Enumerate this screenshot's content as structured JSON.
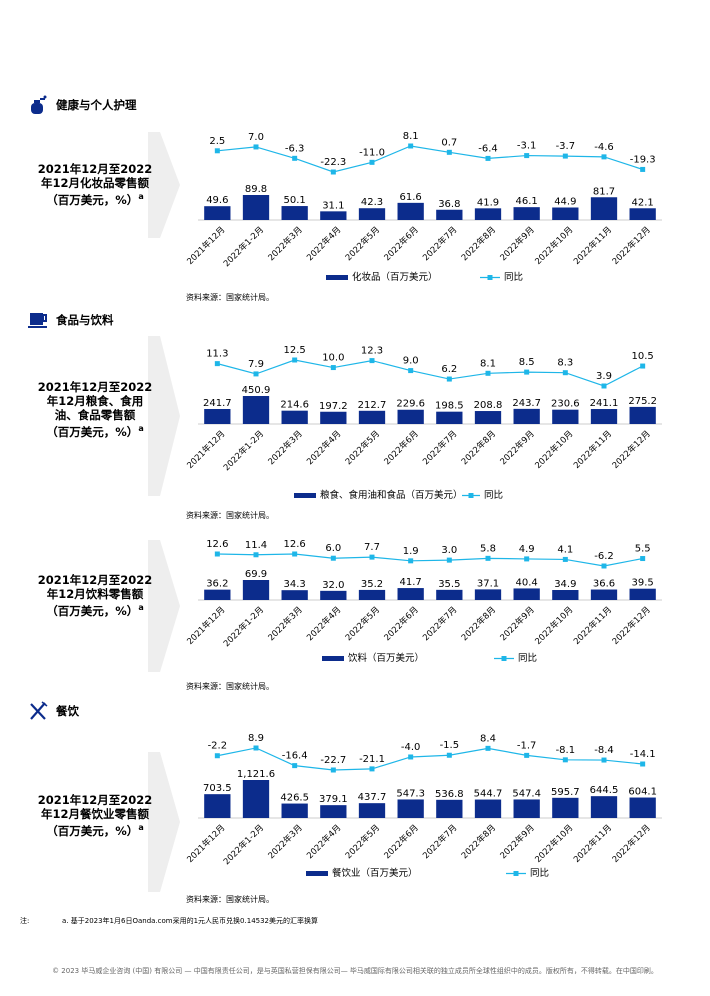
{
  "sections": {
    "health": "健康与个人护理",
    "food": "食品与饮料",
    "dining": "餐饮"
  },
  "source_text": "资料来源：国家统计局。",
  "note": {
    "label": "注:",
    "text": "a. 基于2023年1月6日Oanda.com采用的1元人民币兑换0.14532美元的汇率换算"
  },
  "footer": "© 2023 毕马威企业咨询 (中国) 有限公司 — 中国有限责任公司，是与英国私营担保有限公司— 毕马威国际有限公司相关联的独立成员所全球性组织中的成员。版权所有，不得转载。在中国印刷。",
  "colors": {
    "bar": "#0c2c8c",
    "line": "#1eb6e8",
    "chevron": "#eeeeee"
  },
  "chart_data": [
    {
      "type": "bar",
      "title_lines": [
        "2021年12月至2022",
        "年12月化妆品零售额",
        "（百万美元，%）"
      ],
      "title_sup": "a",
      "categories": [
        "2021年12月",
        "2022年1-2月",
        "2022年3月",
        "2022年4月",
        "2022年5月",
        "2022年6月",
        "2022年7月",
        "2022年8月",
        "2022年9月",
        "2022年10月",
        "2022年11月",
        "2022年12月"
      ],
      "values": [
        49.6,
        89.8,
        50.1,
        31.1,
        42.3,
        61.6,
        36.8,
        41.9,
        46.1,
        44.9,
        81.7,
        42.1
      ],
      "value_labels": [
        "49.6",
        "89.8",
        "50.1",
        "31.1",
        "42.3",
        "61.6",
        "36.8",
        "41.9",
        "46.1",
        "44.9",
        "81.7",
        "42.1"
      ],
      "yoy": [
        2.5,
        7.0,
        -6.3,
        -22.3,
        -11.0,
        8.1,
        0.7,
        -6.4,
        -3.1,
        -3.7,
        -4.6,
        -19.3
      ],
      "yoy_labels": [
        "2.5",
        "7.0",
        "-6.3",
        "-22.3",
        "-11.0",
        "8.1",
        "0.7",
        "-6.4",
        "-3.1",
        "-3.7",
        "-4.6",
        "-19.3"
      ],
      "legend": [
        "化妆品（百万美元）",
        "同比"
      ],
      "legend_position": "bottom"
    },
    {
      "type": "bar",
      "title_lines": [
        "2021年12月至2022",
        "年12月粮食、食用",
        "油、食品零售额",
        "（百万美元，%）"
      ],
      "title_sup": "a",
      "categories": [
        "2021年12月",
        "2022年1-2月",
        "2022年3月",
        "2022年4月",
        "2022年5月",
        "2022年6月",
        "2022年7月",
        "2022年8月",
        "2022年9月",
        "2022年10月",
        "2022年11月",
        "2022年12月"
      ],
      "values": [
        241.7,
        450.9,
        214.6,
        197.2,
        212.7,
        229.6,
        198.5,
        208.8,
        243.7,
        230.6,
        241.1,
        275.2
      ],
      "value_labels": [
        "241.7",
        "450.9",
        "214.6",
        "197.2",
        "212.7",
        "229.6",
        "198.5",
        "208.8",
        "243.7",
        "230.6",
        "241.1",
        "275.2"
      ],
      "yoy": [
        11.3,
        7.9,
        12.5,
        10.0,
        12.3,
        9.0,
        6.2,
        8.1,
        8.5,
        8.3,
        3.9,
        10.5
      ],
      "yoy_labels": [
        "11.3",
        "7.9",
        "12.5",
        "10.0",
        "12.3",
        "9.0",
        "6.2",
        "8.1",
        "8.5",
        "8.3",
        "3.9",
        "10.5"
      ],
      "legend": [
        "粮食、食用油和食品（百万美元）",
        "同比"
      ],
      "legend_position": "bottom"
    },
    {
      "type": "bar",
      "title_lines": [
        "2021年12月至2022",
        "年12月饮料零售额",
        "（百万美元，%）"
      ],
      "title_sup": "a",
      "categories": [
        "2021年12月",
        "2022年1-2月",
        "2022年3月",
        "2022年4月",
        "2022年5月",
        "2022年6月",
        "2022年7月",
        "2022年8月",
        "2022年9月",
        "2022年10月",
        "2022年11月",
        "2022年12月"
      ],
      "values": [
        36.2,
        69.9,
        34.3,
        32.0,
        35.2,
        41.7,
        35.5,
        37.1,
        40.4,
        34.9,
        36.6,
        39.5
      ],
      "value_labels": [
        "36.2",
        "69.9",
        "34.3",
        "32.0",
        "35.2",
        "41.7",
        "35.5",
        "37.1",
        "40.4",
        "34.9",
        "36.6",
        "39.5"
      ],
      "yoy": [
        12.6,
        11.4,
        12.6,
        6.0,
        7.7,
        1.9,
        3.0,
        5.8,
        4.9,
        4.1,
        -6.2,
        5.5
      ],
      "yoy_labels": [
        "12.6",
        "11.4",
        "12.6",
        "6.0",
        "7.7",
        "1.9",
        "3.0",
        "5.8",
        "4.9",
        "4.1",
        "-6.2",
        "5.5"
      ],
      "legend": [
        "饮料（百万美元）",
        "同比"
      ],
      "legend_position": "bottom"
    },
    {
      "type": "bar",
      "title_lines": [
        "2021年12月至2022",
        "年12月餐饮业零售额",
        "（百万美元，%）"
      ],
      "title_sup": "a",
      "categories": [
        "2021年12月",
        "2022年1-2月",
        "2022年3月",
        "2022年4月",
        "2022年5月",
        "2022年6月",
        "2022年7月",
        "2022年8月",
        "2022年9月",
        "2022年10月",
        "2022年11月",
        "2022年12月"
      ],
      "values": [
        703.5,
        1121.6,
        426.5,
        379.1,
        437.7,
        547.3,
        536.8,
        544.7,
        547.4,
        595.7,
        644.5,
        604.1
      ],
      "value_labels": [
        "703.5",
        "1,121.6",
        "426.5",
        "379.1",
        "437.7",
        "547.3",
        "536.8",
        "544.7",
        "547.4",
        "595.7",
        "644.5",
        "604.1"
      ],
      "yoy": [
        -2.2,
        8.9,
        -16.4,
        -22.7,
        -21.1,
        -4.0,
        -1.5,
        8.4,
        -1.7,
        -8.1,
        -8.4,
        -14.1
      ],
      "yoy_labels": [
        "-2.2",
        "8.9",
        "-16.4",
        "-22.7",
        "-21.1",
        "-4.0",
        "-1.5",
        "8.4",
        "-1.7",
        "-8.1",
        "-8.4",
        "-14.1"
      ],
      "legend": [
        "餐饮业（百万美元）",
        "同比"
      ],
      "legend_position": "bottom"
    }
  ]
}
